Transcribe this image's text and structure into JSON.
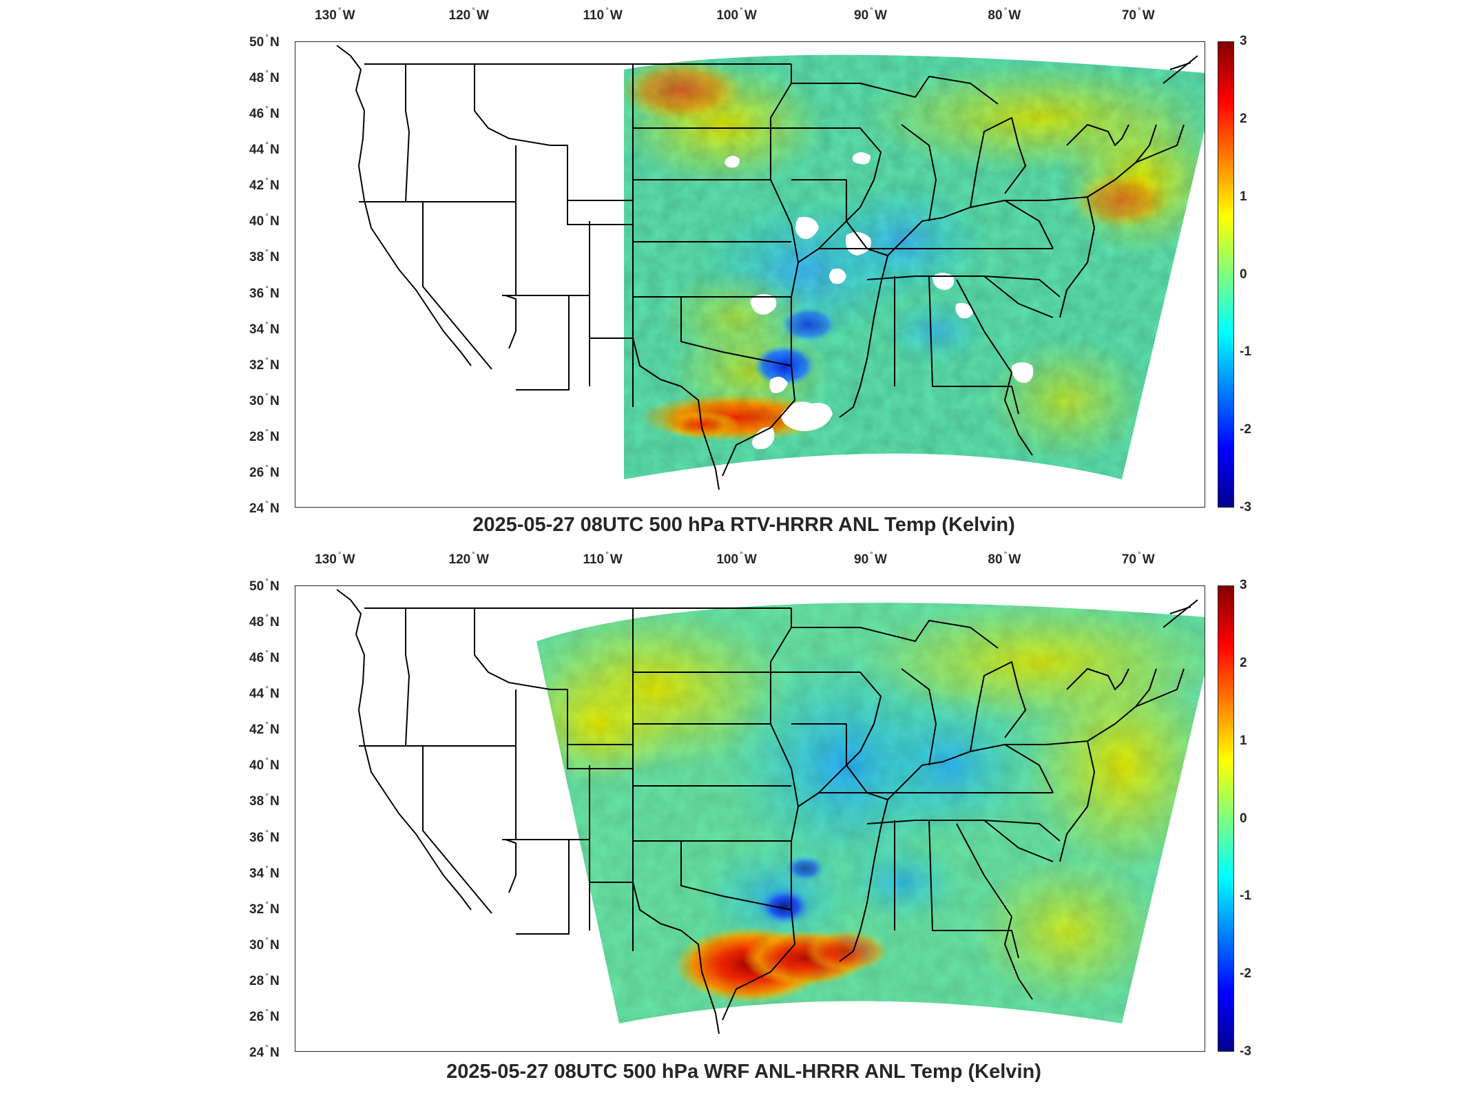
{
  "panels": [
    {
      "title": "2025-05-27 08UTC 500 hPa RTV-HRRR ANL Temp (Kelvin)",
      "lon_ticks": [
        "130",
        "120",
        "110",
        "100",
        "90",
        "80",
        "70"
      ],
      "lat_ticks": [
        "50",
        "48",
        "46",
        "44",
        "42",
        "40",
        "38",
        "36",
        "34",
        "32",
        "30",
        "28",
        "26",
        "24"
      ],
      "lon_suffix": "W",
      "lat_suffix": "N",
      "colorbar": {
        "ticks": [
          "3",
          "2",
          "1",
          "0",
          "-1",
          "-2",
          "-3"
        ],
        "range": [
          -3,
          3
        ],
        "colormap": "jet"
      },
      "field": {
        "name": "500 hPa temperature difference",
        "domain_west_edge_lon": -107,
        "missing_areas": "white patches over Great Plains, Mississippi valley and Texas coast",
        "warm_anomaly_region": "Texas/Louisiana Gulf coast",
        "cold_anomaly_region": "North Texas/Oklahoma"
      }
    },
    {
      "title": "2025-05-27 08UTC 500 hPa WRF ANL-HRRR ANL Temp (Kelvin)",
      "lon_ticks": [
        "130",
        "120",
        "110",
        "100",
        "90",
        "80",
        "70"
      ],
      "lat_ticks": [
        "50",
        "48",
        "46",
        "44",
        "42",
        "40",
        "38",
        "36",
        "34",
        "32",
        "30",
        "28",
        "26",
        "24"
      ],
      "lon_suffix": "W",
      "lat_suffix": "N",
      "colorbar": {
        "ticks": [
          "3",
          "2",
          "1",
          "0",
          "-1",
          "-2",
          "-3"
        ],
        "range": [
          -3,
          3
        ],
        "colormap": "jet"
      },
      "field": {
        "name": "500 hPa temperature difference",
        "domain_west_edge_lon": -113,
        "warm_anomaly_region": "Texas/Louisiana Gulf coast",
        "cold_anomaly_region": "North Texas/Oklahoma"
      }
    }
  ]
}
